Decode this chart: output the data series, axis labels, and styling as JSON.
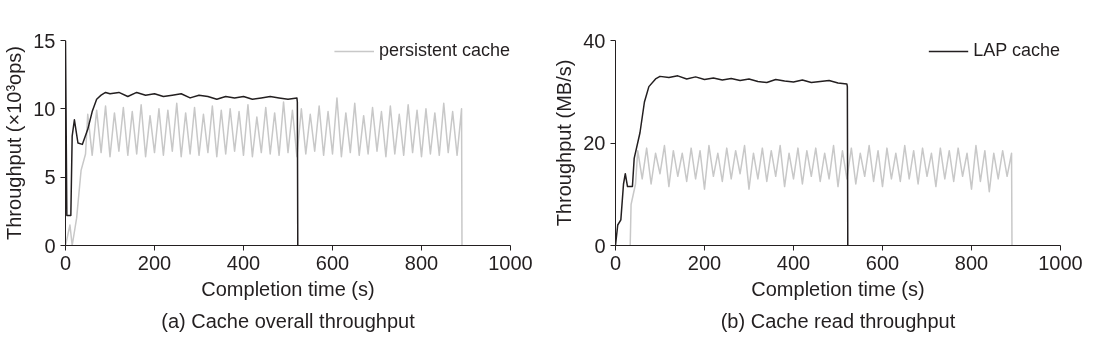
{
  "chart_data": [
    {
      "type": "line",
      "title": "(a) Cache overall throughput",
      "xlabel": "Completion time (s)",
      "ylabel": "Throughput (×10³ops)",
      "xlim": [
        0,
        1000
      ],
      "xticks": [
        0,
        200,
        400,
        600,
        800,
        1000
      ],
      "ylim": [
        0,
        15
      ],
      "yticks": [
        0,
        5,
        10,
        15
      ],
      "grid": false,
      "legend": "top right",
      "series": [
        {
          "name": "persistent cache",
          "color": "#c8c8c8",
          "x": [
            0,
            10,
            15,
            25,
            35,
            45,
            50,
            60,
            70,
            80,
            90,
            100,
            110,
            120,
            130,
            140,
            150,
            160,
            170,
            180,
            190,
            200,
            210,
            220,
            230,
            240,
            250,
            260,
            270,
            280,
            290,
            300,
            310,
            320,
            330,
            340,
            350,
            360,
            370,
            380,
            390,
            400,
            410,
            420,
            430,
            440,
            450,
            460,
            470,
            480,
            490,
            500,
            510,
            520,
            530,
            540,
            550,
            560,
            570,
            580,
            590,
            600,
            610,
            620,
            630,
            640,
            650,
            660,
            670,
            680,
            690,
            700,
            710,
            720,
            730,
            740,
            750,
            760,
            770,
            780,
            790,
            800,
            810,
            820,
            830,
            840,
            850,
            860,
            870,
            880,
            890,
            891
          ],
          "values": [
            0,
            1.5,
            0,
            2,
            5.5,
            6.7,
            9.6,
            6.6,
            9.9,
            6.8,
            10.2,
            6.5,
            9.7,
            6.9,
            10.1,
            6.6,
            9.8,
            6.7,
            10.3,
            6.5,
            9.5,
            6.8,
            10.0,
            6.6,
            9.9,
            6.9,
            10.4,
            6.5,
            9.7,
            6.7,
            10.1,
            6.6,
            9.6,
            6.8,
            10.2,
            6.5,
            9.9,
            6.7,
            10.0,
            6.9,
            9.8,
            6.6,
            10.3,
            6.5,
            9.4,
            6.8,
            10.1,
            6.7,
            9.7,
            6.6,
            10.5,
            6.8,
            9.9,
            6.5,
            10.0,
            6.7,
            9.6,
            6.9,
            10.2,
            6.6,
            9.8,
            6.7,
            10.8,
            6.5,
            9.7,
            6.8,
            10.4,
            6.6,
            9.5,
            6.7,
            10.1,
            6.9,
            9.8,
            6.5,
            10.2,
            6.7,
            9.6,
            6.6,
            10.3,
            6.8,
            9.9,
            6.5,
            10.0,
            6.7,
            9.7,
            6.6,
            10.4,
            6.8,
            9.8,
            6.6,
            10.0,
            0
          ]
        },
        {
          "color": "#231f20",
          "x": [
            0,
            3,
            12,
            15,
            20,
            28,
            38,
            50,
            60,
            70,
            80,
            90,
            100,
            120,
            140,
            160,
            180,
            200,
            220,
            240,
            260,
            280,
            300,
            320,
            340,
            360,
            380,
            400,
            420,
            440,
            460,
            480,
            500,
            520,
            521,
            522
          ],
          "values": [
            15,
            2.2,
            2.2,
            8,
            9.2,
            7.5,
            7.4,
            8.5,
            9.8,
            10.7,
            11.0,
            11.2,
            11.1,
            11.2,
            10.9,
            11.2,
            11.0,
            11.1,
            10.9,
            11.0,
            11.1,
            10.8,
            11.0,
            10.9,
            10.7,
            10.9,
            10.8,
            10.9,
            10.7,
            10.8,
            10.9,
            10.8,
            10.7,
            10.8,
            10.5,
            0
          ]
        }
      ]
    },
    {
      "type": "line",
      "title": "(b) Cache read throughput",
      "xlabel": "Completion time (s)",
      "ylabel": "Throughput (MB/s)",
      "xlim": [
        0,
        1000
      ],
      "xticks": [
        0,
        200,
        400,
        600,
        800,
        1000
      ],
      "ylim": [
        0,
        40
      ],
      "yticks": [
        0,
        20,
        40
      ],
      "grid": false,
      "legend": "top right",
      "series": [
        {
          "color": "#c8c8c8",
          "x": [
            33,
            35,
            45,
            50,
            60,
            70,
            80,
            90,
            100,
            110,
            120,
            130,
            140,
            150,
            160,
            170,
            180,
            190,
            200,
            210,
            220,
            230,
            240,
            250,
            260,
            270,
            280,
            290,
            300,
            310,
            320,
            330,
            340,
            350,
            360,
            370,
            380,
            390,
            400,
            410,
            420,
            430,
            440,
            450,
            460,
            470,
            480,
            490,
            500,
            510,
            520,
            530,
            540,
            550,
            560,
            570,
            580,
            590,
            600,
            610,
            620,
            630,
            640,
            650,
            660,
            670,
            680,
            690,
            700,
            710,
            720,
            730,
            740,
            750,
            760,
            770,
            780,
            790,
            800,
            810,
            820,
            830,
            840,
            850,
            860,
            870,
            880,
            890,
            891
          ],
          "values": [
            0,
            8,
            12,
            18.5,
            13,
            19,
            12,
            18,
            14,
            19.5,
            11.5,
            18.5,
            13.5,
            18,
            12.5,
            19,
            13,
            18.5,
            11,
            19.5,
            13.5,
            18,
            12.5,
            19,
            13,
            18.5,
            14,
            19.5,
            11,
            18,
            13,
            19,
            12.5,
            18.5,
            13.5,
            19.5,
            11.5,
            18,
            13,
            19,
            12,
            18.5,
            13.5,
            19,
            12.5,
            18,
            13,
            19.5,
            11.5,
            18.5,
            13,
            19,
            12,
            18,
            13.5,
            19.5,
            12.5,
            18.5,
            11.5,
            19,
            13,
            18,
            12.5,
            19.5,
            13,
            18.5,
            12,
            19,
            13.5,
            18,
            11.5,
            19,
            13,
            18.5,
            12.5,
            19,
            13.5,
            18,
            11,
            19.5,
            12.5,
            18.5,
            10.5,
            18,
            13,
            18.5,
            13.5,
            18,
            0
          ]
        },
        {
          "name": "LAP cache",
          "color": "#231f20",
          "x": [
            0,
            5,
            12,
            18,
            22,
            27,
            38,
            42,
            55,
            65,
            75,
            90,
            100,
            120,
            140,
            160,
            180,
            200,
            220,
            240,
            260,
            280,
            300,
            320,
            340,
            360,
            380,
            400,
            420,
            440,
            460,
            480,
            500,
            520,
            521,
            522
          ],
          "values": [
            0,
            4,
            5,
            12,
            14,
            11.5,
            11.5,
            17,
            22,
            28,
            31,
            32.5,
            33,
            32.8,
            33.1,
            32.5,
            32.9,
            32.4,
            32.7,
            32.3,
            32.6,
            32.2,
            32.5,
            32.0,
            31.8,
            32.4,
            32.1,
            31.9,
            32.3,
            31.8,
            32.0,
            32.2,
            31.7,
            31.5,
            31.0,
            0
          ]
        }
      ]
    }
  ]
}
